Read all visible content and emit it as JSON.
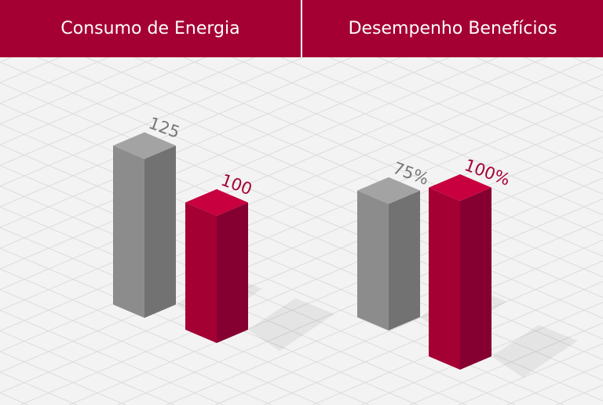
{
  "colors": {
    "brand": "#a50034",
    "gray_bar": "#8c8c8c",
    "red_bar": "#a50034",
    "background": "#f3f3f3"
  },
  "chart_data": [
    {
      "type": "bar",
      "title": "Consumo de Energia",
      "categories": [
        "",
        ""
      ],
      "values": [
        125,
        100
      ],
      "labels": [
        "125",
        "100"
      ],
      "bar_colors": [
        "gray",
        "red"
      ],
      "style": "3d-isometric",
      "grid": true
    },
    {
      "type": "bar",
      "title": "Desempenho Benefícios",
      "categories": [
        "",
        ""
      ],
      "values": [
        75,
        100
      ],
      "labels": [
        "75%",
        "100%"
      ],
      "unit": "%",
      "bar_colors": [
        "gray",
        "red"
      ],
      "style": "3d-isometric",
      "grid": true
    }
  ]
}
